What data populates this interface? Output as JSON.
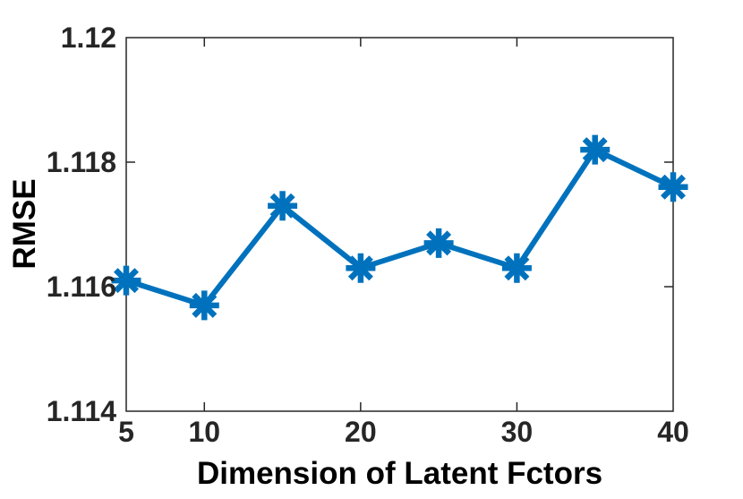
{
  "chart_data": {
    "type": "line",
    "title": "",
    "xlabel": "Dimension of Latent Fctors",
    "ylabel": "RMSE",
    "x": [
      5,
      10,
      15,
      20,
      25,
      30,
      35,
      40
    ],
    "series": [
      {
        "name": "RMSE",
        "values": [
          1.1161,
          1.1157,
          1.1173,
          1.1163,
          1.1167,
          1.1163,
          1.1182,
          1.1176
        ]
      }
    ],
    "xlim": [
      5,
      40
    ],
    "ylim": [
      1.114,
      1.12
    ],
    "xticks": {
      "values": [
        5,
        10,
        20,
        30,
        40
      ],
      "labels": [
        "5",
        "10",
        "20",
        "30",
        "40"
      ]
    },
    "yticks": {
      "values": [
        1.114,
        1.116,
        1.118,
        1.12
      ],
      "labels": [
        "1.114",
        "1.116",
        "1.118",
        "1.12"
      ]
    },
    "grid": false,
    "legend": null,
    "marker": "asterisk",
    "line_color": "#0072BD",
    "axis_color": "#262626",
    "tick_label_color": "#262626",
    "label_color": "#000000",
    "background": "#ffffff"
  }
}
